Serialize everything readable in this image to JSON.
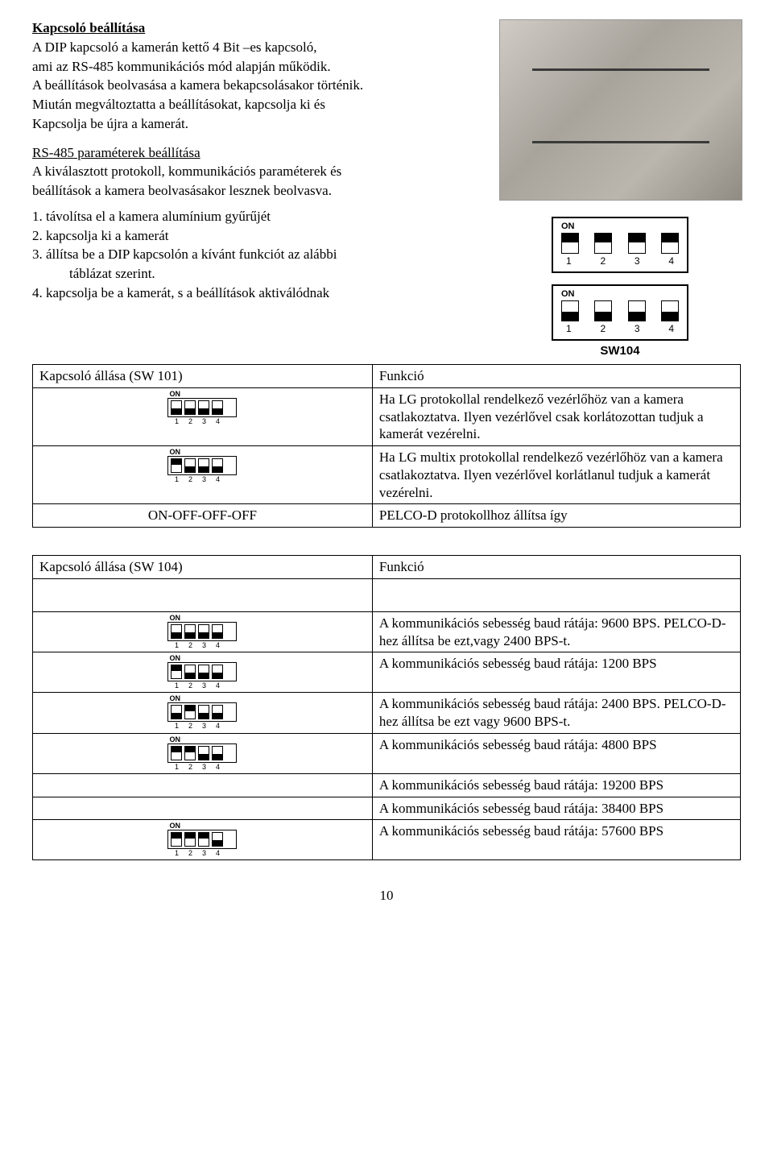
{
  "section": {
    "title": "Kapcsoló beállítása",
    "intro1": "A DIP kapcsoló a kamerán kettő 4 Bit –es kapcsoló,",
    "intro2": "ami az RS-485 kommunikációs mód alapján működik.",
    "intro3": "A beállítások beolvasása a kamera bekapcsolásakor történik.",
    "intro4": "Miután megváltoztatta a beállításokat, kapcsolja ki és",
    "intro5": "Kapcsolja be újra a kamerát.",
    "sub_title": "RS-485 paraméterek beállítása",
    "sub1": "A kiválasztott protokoll, kommunikációs paraméterek és",
    "sub2": "beállítások a kamera beolvasásakor lesznek beolvasva.",
    "step1": "1. távolítsa el a kamera alumínium gyűrűjét",
    "step2": "2. kapcsolja ki a kamerát",
    "step3a": "3. állítsa be a DIP kapcsolón a kívánt funkciót az alábbi",
    "step3b": "táblázat szerint.",
    "step4": "4. kapcsolja be a kamerát, s a beállítások aktiválódnak"
  },
  "diagrams": {
    "on_label": "ON",
    "sw104_label": "SW104",
    "numbers": [
      "1",
      "2",
      "3",
      "4"
    ],
    "top_positions": [
      "up",
      "up",
      "up",
      "up"
    ],
    "bottom_positions": [
      "down",
      "down",
      "down",
      "down"
    ]
  },
  "table1": {
    "header_left": "Kapcsoló állása (SW 101)",
    "header_right": "Funkció",
    "rows": [
      {
        "dip": [
          "down",
          "down",
          "down",
          "down"
        ],
        "text": "Ha LG protokollal rendelkező vezérlőhöz van a kamera csatlakoztatva. Ilyen vezérlővel csak korlátozottan tudjuk a kamerát vezérelni."
      },
      {
        "dip": [
          "up",
          "down",
          "down",
          "down"
        ],
        "text": "Ha LG multix protokollal rendelkező vezérlőhöz van a kamera csatlakoztatva. Ilyen vezérlővel korlátlanul tudjuk a kamerát vezérelni."
      },
      {
        "label": "ON-OFF-OFF-OFF",
        "text": "PELCO-D protokollhoz állítsa így"
      }
    ]
  },
  "table2": {
    "header_left": "Kapcsoló állása (SW 104)",
    "header_right": "Funkció",
    "rows": [
      {
        "dip": [
          "down",
          "down",
          "down",
          "down"
        ],
        "text": "A kommunikációs sebesség baud rátája: 9600 BPS. PELCO-D-hez állítsa be ezt,vagy 2400 BPS-t."
      },
      {
        "dip": [
          "up",
          "down",
          "down",
          "down"
        ],
        "text": "A kommunikációs sebesség baud rátája: 1200 BPS"
      },
      {
        "dip": [
          "down",
          "up",
          "down",
          "down"
        ],
        "text": "A kommunikációs sebesség baud rátája: 2400 BPS. PELCO-D-hez állítsa be ezt vagy 9600 BPS-t."
      },
      {
        "dip": [
          "up",
          "up",
          "down",
          "down"
        ],
        "text": "A kommunikációs sebesség baud rátája: 4800 BPS"
      },
      {
        "dip": null,
        "text": "A kommunikációs sebesség baud rátája: 19200 BPS"
      },
      {
        "dip": null,
        "text": "A kommunikációs sebesség baud rátája: 38400 BPS"
      },
      {
        "dip": [
          "up",
          "up",
          "up",
          "down"
        ],
        "text": "A kommunikációs sebesség baud rátája: 57600 BPS"
      }
    ]
  },
  "page_number": "10"
}
